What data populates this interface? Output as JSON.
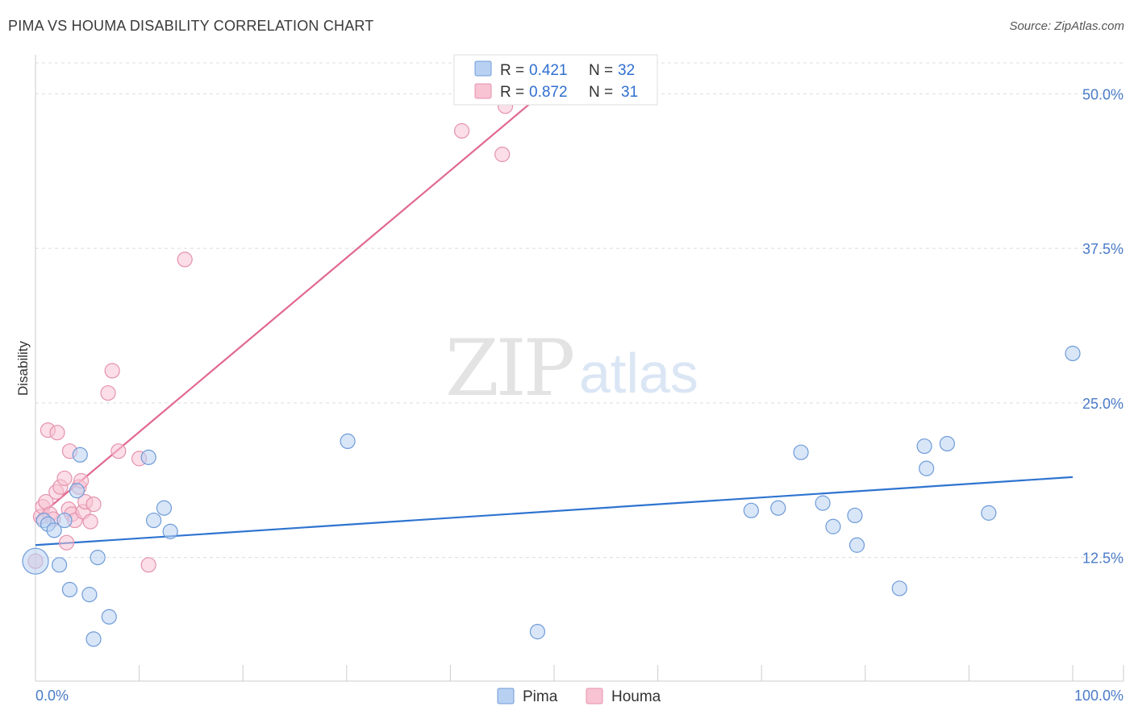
{
  "title": "PIMA VS HOUMA DISABILITY CORRELATION CHART",
  "source": "Source: ZipAtlas.com",
  "watermark": {
    "zip": "ZIP",
    "atlas": "atlas"
  },
  "colors": {
    "pima_fill": "#b8d1f2",
    "pima_stroke": "#6f9bd8",
    "pima_line": "#2e74d0",
    "houma_fill": "#f8c3d3",
    "houma_stroke": "#e592ad",
    "houma_line": "#e06891",
    "grid": "#dddddd",
    "tick_text": "#4a7bc8"
  },
  "legend": {
    "rows": [
      {
        "series": "Pima",
        "r_label": "R =",
        "r_value": "0.421",
        "n_label": "N =",
        "n_value": "32"
      },
      {
        "series": "Houma",
        "r_label": "R =",
        "r_value": "0.872",
        "n_label": "N =",
        "n_value": "31"
      }
    ]
  },
  "bottom_legend": [
    "Pima",
    "Houma"
  ],
  "chart_data": {
    "type": "scatter",
    "title": "PIMA VS HOUMA DISABILITY CORRELATION CHART",
    "xlabel": "",
    "ylabel": "Disability",
    "xlim": [
      0,
      100
    ],
    "ylim": [
      2.5,
      52.5
    ],
    "x_tick_labels": [
      "0.0%",
      "100.0%"
    ],
    "y_ticks": [
      12.5,
      25.0,
      37.5,
      50.0
    ],
    "y_tick_labels": [
      "12.5%",
      "25.0%",
      "37.5%",
      "50.0%"
    ],
    "legend_position": "top-center",
    "series": [
      {
        "name": "Pima",
        "r": 0.421,
        "n": 32,
        "trendline": {
          "x": [
            0,
            100
          ],
          "y": [
            13.5,
            19.0
          ]
        },
        "points": [
          {
            "x": 0.0,
            "y": 12.2,
            "big": true
          },
          {
            "x": 0.8,
            "y": 15.5
          },
          {
            "x": 1.2,
            "y": 15.2
          },
          {
            "x": 1.8,
            "y": 14.7
          },
          {
            "x": 2.3,
            "y": 11.9
          },
          {
            "x": 2.8,
            "y": 15.5
          },
          {
            "x": 3.3,
            "y": 9.9
          },
          {
            "x": 4.0,
            "y": 17.9
          },
          {
            "x": 4.3,
            "y": 20.8
          },
          {
            "x": 5.2,
            "y": 9.5
          },
          {
            "x": 5.6,
            "y": 5.9
          },
          {
            "x": 6.0,
            "y": 12.5
          },
          {
            "x": 7.1,
            "y": 7.7
          },
          {
            "x": 10.9,
            "y": 20.6
          },
          {
            "x": 11.4,
            "y": 15.5
          },
          {
            "x": 12.4,
            "y": 16.5
          },
          {
            "x": 13.0,
            "y": 14.6
          },
          {
            "x": 30.1,
            "y": 21.9
          },
          {
            "x": 48.4,
            "y": 6.5
          },
          {
            "x": 69.0,
            "y": 16.3
          },
          {
            "x": 71.6,
            "y": 16.5
          },
          {
            "x": 73.8,
            "y": 21.0
          },
          {
            "x": 75.9,
            "y": 16.9
          },
          {
            "x": 76.9,
            "y": 15.0
          },
          {
            "x": 79.0,
            "y": 15.9
          },
          {
            "x": 79.2,
            "y": 13.5
          },
          {
            "x": 83.3,
            "y": 10.0
          },
          {
            "x": 85.7,
            "y": 21.5
          },
          {
            "x": 85.9,
            "y": 19.7
          },
          {
            "x": 87.9,
            "y": 21.7
          },
          {
            "x": 91.9,
            "y": 16.1
          },
          {
            "x": 100.0,
            "y": 29.0
          }
        ]
      },
      {
        "name": "Houma",
        "r": 0.872,
        "n": 31,
        "trendline": {
          "x": [
            0,
            48.8
          ],
          "y": [
            15.6,
            50.0
          ]
        },
        "points": [
          {
            "x": 0.0,
            "y": 12.2
          },
          {
            "x": 0.5,
            "y": 15.8
          },
          {
            "x": 0.7,
            "y": 16.6
          },
          {
            "x": 1.0,
            "y": 17.0
          },
          {
            "x": 1.2,
            "y": 22.8
          },
          {
            "x": 1.4,
            "y": 16.0
          },
          {
            "x": 1.7,
            "y": 15.6
          },
          {
            "x": 2.0,
            "y": 17.8
          },
          {
            "x": 2.1,
            "y": 22.6
          },
          {
            "x": 2.4,
            "y": 18.2
          },
          {
            "x": 2.8,
            "y": 18.9
          },
          {
            "x": 3.0,
            "y": 13.7
          },
          {
            "x": 3.2,
            "y": 16.4
          },
          {
            "x": 3.3,
            "y": 21.1
          },
          {
            "x": 3.5,
            "y": 16.0
          },
          {
            "x": 3.8,
            "y": 15.5
          },
          {
            "x": 4.2,
            "y": 18.2
          },
          {
            "x": 4.4,
            "y": 18.7
          },
          {
            "x": 4.6,
            "y": 16.2
          },
          {
            "x": 4.8,
            "y": 17.0
          },
          {
            "x": 5.3,
            "y": 15.4
          },
          {
            "x": 5.6,
            "y": 16.8
          },
          {
            "x": 7.0,
            "y": 25.8
          },
          {
            "x": 7.4,
            "y": 27.6
          },
          {
            "x": 8.0,
            "y": 21.1
          },
          {
            "x": 10.0,
            "y": 20.5
          },
          {
            "x": 10.9,
            "y": 11.9
          },
          {
            "x": 14.4,
            "y": 36.6
          },
          {
            "x": 41.1,
            "y": 47.0
          },
          {
            "x": 45.0,
            "y": 45.1
          },
          {
            "x": 45.3,
            "y": 49.0
          }
        ]
      }
    ]
  }
}
